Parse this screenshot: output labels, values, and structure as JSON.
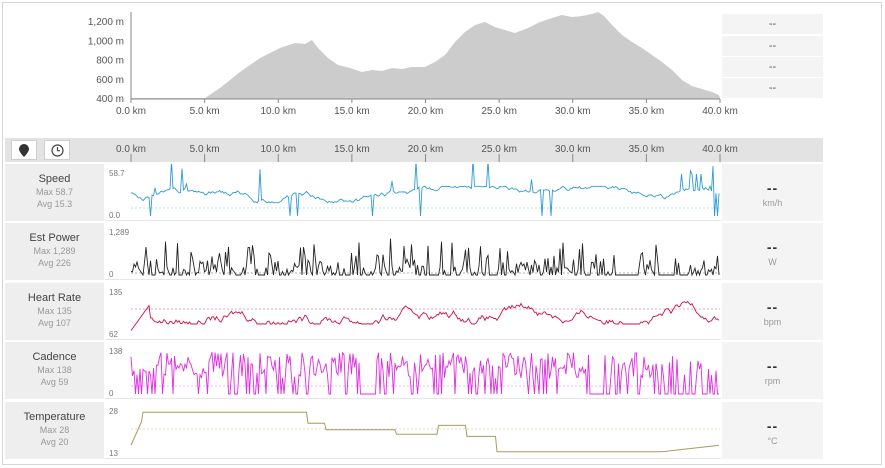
{
  "elevation": {
    "y_ticks": [
      "1,200 m",
      "1,000 m",
      "800 m",
      "600 m",
      "400 m"
    ],
    "x_ticks": [
      "0.0 km",
      "5.0 km",
      "10.0 km",
      "15.0 km",
      "20.0 km",
      "25.0 km",
      "30.0 km",
      "35.0 km",
      "40.0 km"
    ],
    "summary": [
      "--",
      "--",
      "--",
      "--"
    ],
    "fill_color": "#cccccc"
  },
  "toolbar": {
    "icons": [
      "map-pin-icon",
      "clock-icon"
    ],
    "x_ticks": [
      "0.0 km",
      "5.0 km",
      "10.0 km",
      "15.0 km",
      "20.0 km",
      "25.0 km",
      "30.0 km",
      "35.0 km",
      "40.0 km"
    ]
  },
  "streams": [
    {
      "title": "Speed",
      "max": "Max 58.7",
      "avg": "Avg 15.3",
      "ymax": "58.7",
      "ymin": "0.0",
      "value": "--",
      "unit": "km/h",
      "color": "#2e9bd6"
    },
    {
      "title": "Est Power",
      "max": "Max 1,289",
      "avg": "Avg 226",
      "ymax": "1,289",
      "ymin": "0",
      "value": "--",
      "unit": "W",
      "color": "#222222"
    },
    {
      "title": "Heart Rate",
      "max": "Max 135",
      "avg": "Avg 107",
      "ymax": "135",
      "ymin": "62",
      "value": "--",
      "unit": "bpm",
      "color": "#cc1144"
    },
    {
      "title": "Cadence",
      "max": "Max 138",
      "avg": "Avg 59",
      "ymax": "138",
      "ymin": "0",
      "value": "--",
      "unit": "rpm",
      "color": "#e22ae2"
    },
    {
      "title": "Temperature",
      "max": "Max 28",
      "avg": "Avg 20",
      "ymax": "28",
      "ymin": "13",
      "value": "--",
      "unit": "°C",
      "color": "#a89a5a"
    }
  ]
}
